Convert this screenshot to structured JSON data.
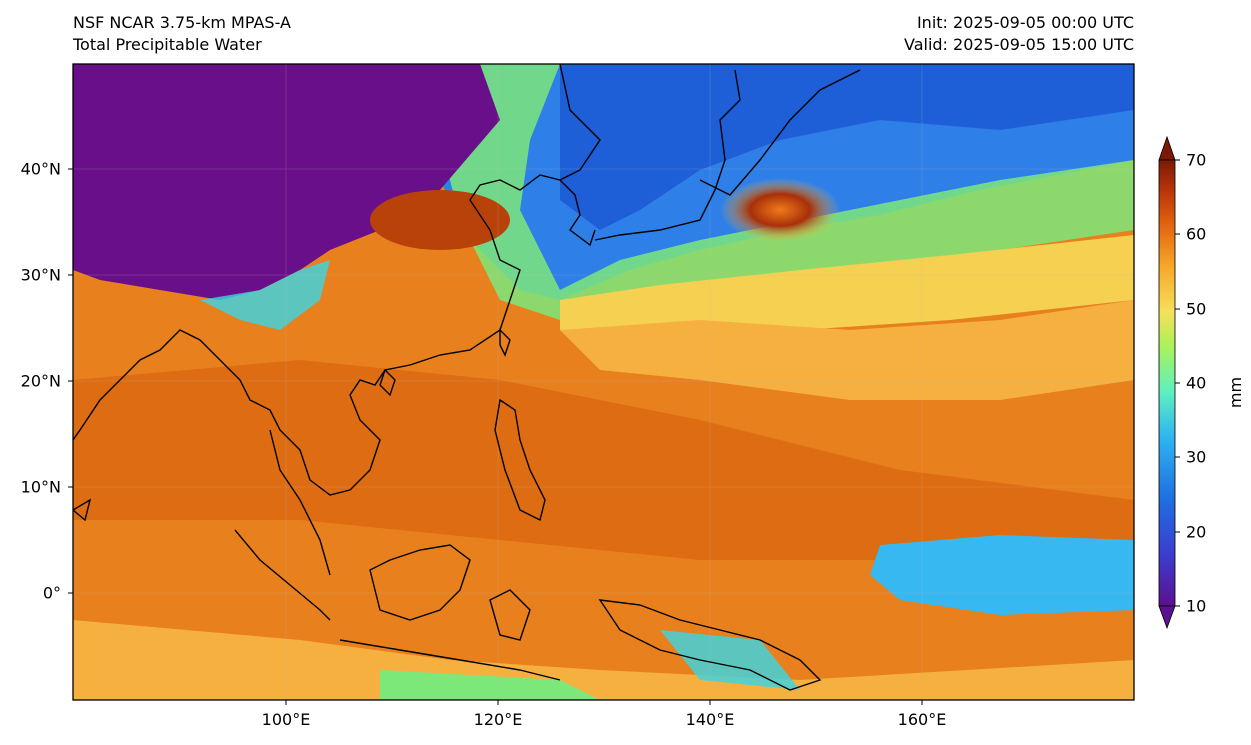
{
  "header": {
    "model": "NSF NCAR 3.75-km MPAS-A",
    "field": "Total Precipitable Water",
    "init": "Init: 2025-09-05 00:00 UTC",
    "valid": "Valid: 2025-09-05 15:00 UTC"
  },
  "map": {
    "lat_labels": [
      "40°N",
      "30°N",
      "20°N",
      "10°N",
      "0°"
    ],
    "lon_labels": [
      "100°E",
      "120°E",
      "140°E",
      "160°E"
    ],
    "colors": {
      "dry_purple": "#6a0f8a",
      "blue": "#1f6fe0",
      "cyan": "#37d6e6",
      "green": "#7cf07a",
      "yellow": "#f6e05a",
      "orange": "#f08a1c",
      "dark_orange": "#d25a0a",
      "brown": "#8a2a08",
      "coast": "#000000"
    }
  },
  "colorbar": {
    "unit": "mm",
    "ticks": [
      "70",
      "60",
      "50",
      "40",
      "30",
      "20",
      "10"
    ],
    "min": 10,
    "max": 70
  }
}
